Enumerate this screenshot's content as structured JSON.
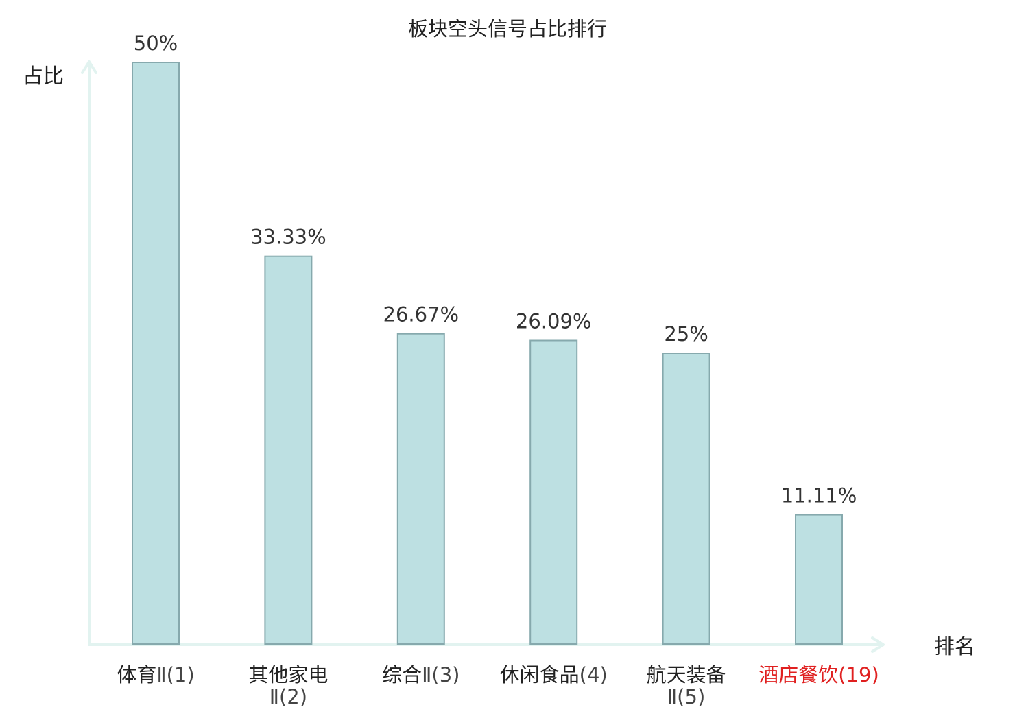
{
  "colors": {
    "bar_fill": "#bde0e2",
    "bar_stroke": "#86a9ad",
    "axis": "#e2f3f0",
    "text": "#222222",
    "value_text": "#333333",
    "highlight": "#e02020"
  },
  "chart_data": {
    "type": "bar",
    "title": "板块空头信号占比排行",
    "xlabel": "排名",
    "ylabel": "占比",
    "ylim": [
      0,
      50
    ],
    "grid": false,
    "categories": [
      {
        "name": "体育",
        "suffix": "Ⅱ(1)",
        "wrap": false,
        "highlight": false
      },
      {
        "name": "其他家电",
        "suffix": "Ⅱ(2)",
        "wrap": true,
        "highlight": false
      },
      {
        "name": "综合",
        "suffix": "Ⅱ(3)",
        "wrap": false,
        "highlight": false
      },
      {
        "name": "休闲食品",
        "suffix": "(4)",
        "wrap": false,
        "highlight": false
      },
      {
        "name": "航天装备",
        "suffix": "Ⅱ(5)",
        "wrap": true,
        "highlight": false
      },
      {
        "name": "酒店餐饮",
        "suffix": "(19)",
        "wrap": false,
        "highlight": true
      }
    ],
    "values": [
      50,
      33.33,
      26.67,
      26.09,
      25,
      11.11
    ],
    "value_labels": [
      "50%",
      "33.33%",
      "26.67%",
      "26.09%",
      "25%",
      "11.11%"
    ]
  }
}
